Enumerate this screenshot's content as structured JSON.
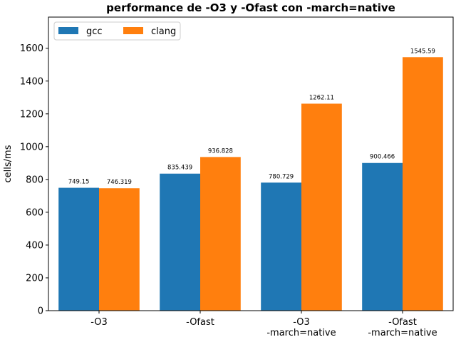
{
  "chart_data": {
    "type": "bar",
    "title": "performance de -O3 y -Ofast con -march=native",
    "xlabel": "",
    "ylabel": "cells/ms",
    "ylim": [
      0,
      1790
    ],
    "yticks": [
      0,
      200,
      400,
      600,
      800,
      1000,
      1200,
      1400,
      1600
    ],
    "categories": [
      [
        "-O3"
      ],
      [
        "-Ofast"
      ],
      [
        "-O3",
        "-march=native"
      ],
      [
        "-Ofast",
        "-march=native"
      ]
    ],
    "series": [
      {
        "name": "gcc",
        "color": "#1f77b4",
        "values": [
          749.15,
          835.439,
          780.729,
          900.466
        ],
        "labels": [
          "749.15",
          "835.439",
          "780.729",
          "900.466"
        ]
      },
      {
        "name": "clang",
        "color": "#ff7f0e",
        "values": [
          746.319,
          936.828,
          1262.11,
          1545.59
        ],
        "labels": [
          "746.319",
          "936.828",
          "1262.11",
          "1545.59"
        ]
      }
    ],
    "legend_position": "top-left",
    "grid": false
  }
}
